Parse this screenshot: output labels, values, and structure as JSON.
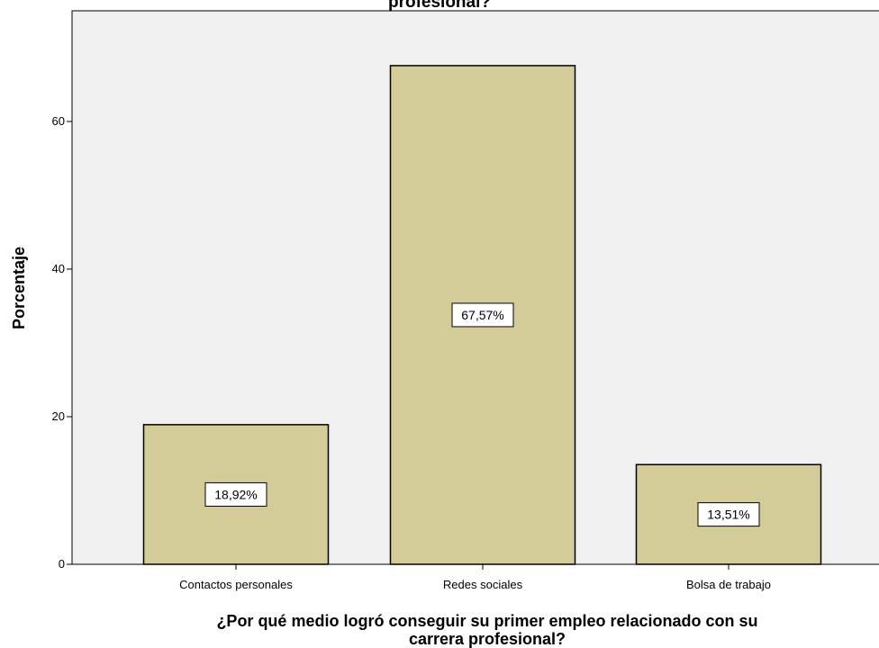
{
  "chart_data": {
    "type": "bar",
    "title": "profesional?",
    "xlabel": "¿Por qué medio logró conseguir su primer empleo relacionado con su carrera profesional?",
    "xlabel_lines": [
      "¿Por qué medio logró conseguir su primer empleo relacionado con su",
      "carrera profesional?"
    ],
    "ylabel": "Porcentaje",
    "categories": [
      "Contactos personales",
      "Redes sociales",
      "Bolsa de trabajo"
    ],
    "values": [
      18.92,
      67.57,
      13.51
    ],
    "data_labels": [
      "18,92%",
      "67,57%",
      "13,51%"
    ],
    "ylim": [
      0,
      75
    ],
    "yticks": [
      0,
      20,
      40,
      60
    ],
    "ytick_labels": [
      "0",
      "20",
      "40",
      "60"
    ],
    "grid": false,
    "colors": {
      "bar_fill": "#d3cc98",
      "bar_stroke": "#000000",
      "plot_background": "#f0f0f0",
      "label_box": "#ffffff"
    }
  }
}
